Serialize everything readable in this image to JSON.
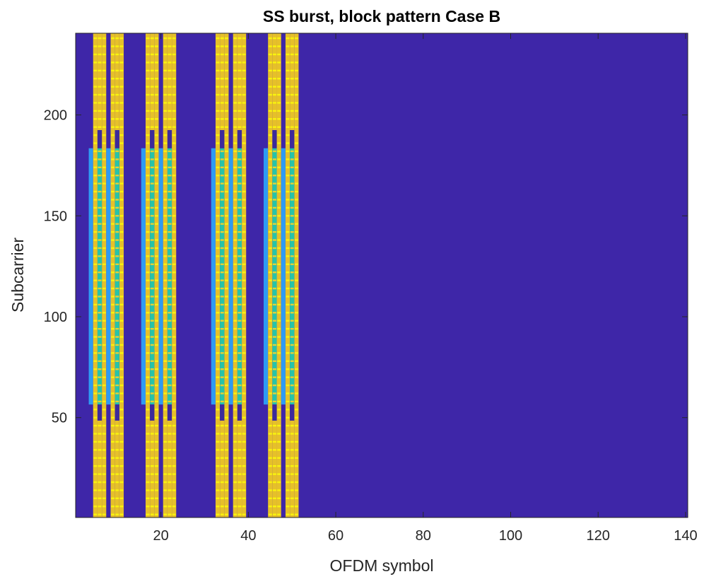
{
  "chart_data": {
    "type": "heatmap",
    "title": "SS burst, block pattern Case B",
    "xlabel": "OFDM symbol",
    "ylabel": "Subcarrier",
    "xlim": [
      0.5,
      140.5
    ],
    "ylim": [
      0.5,
      240.5
    ],
    "x_ticks": [
      20,
      40,
      60,
      80,
      100,
      120,
      140
    ],
    "y_ticks": [
      50,
      100,
      150,
      200
    ],
    "grid": false,
    "colors": {
      "background": "#3e26a8",
      "pbch": "#e6c02a",
      "pbch_stripe": "#f9f30e",
      "dmrs_gap": "#3c2a9b",
      "pss": "#2e9bf3",
      "sss": "#27c4a8",
      "sss_stripe": "#e3cf3a"
    },
    "ssb_start_symbols": [
      4,
      8,
      16,
      20,
      32,
      36,
      44,
      48
    ],
    "ssb_layout": {
      "pss": {
        "symbol_offset": 0,
        "subcarriers": [
          57,
          183
        ]
      },
      "pbch": [
        {
          "symbol_offset": 1,
          "subcarriers": [
            1,
            240
          ]
        },
        {
          "symbol_offset": 3,
          "subcarriers": [
            1,
            240
          ]
        },
        {
          "symbol_offset": 2,
          "subcarriers": [
            1,
            48
          ]
        },
        {
          "symbol_offset": 2,
          "subcarriers": [
            193,
            240
          ]
        }
      ],
      "sss": {
        "symbol_offset": 2,
        "subcarriers": [
          57,
          183
        ]
      },
      "dmrs_gap_bands": {
        "symbol_offset": 2,
        "subcarriers": [
          [
            49,
            56
          ],
          [
            184,
            192
          ]
        ]
      }
    }
  }
}
